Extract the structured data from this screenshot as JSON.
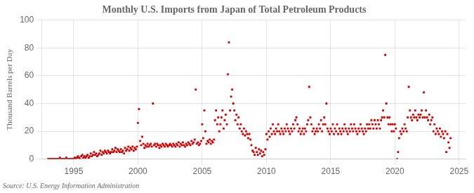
{
  "chart_data": {
    "type": "scatter",
    "title": "Monthly U.S. Imports from Japan of Total Petroleum Products",
    "ylabel": "Thousand Barrels per Day",
    "source": "Source: U.S. Energy Information Administration",
    "color": "#cc0000",
    "marker": "square",
    "grid": true,
    "xlim": [
      1992.5,
      2025.5
    ],
    "xticks": [
      1995,
      2000,
      2005,
      2010,
      2015,
      2020,
      2025
    ],
    "ylim": [
      0,
      100
    ],
    "yticks": [
      0,
      20,
      40,
      60,
      80,
      100
    ],
    "x": [
      1993.0,
      1993.08,
      1993.17,
      1993.25,
      1993.33,
      1993.42,
      1993.5,
      1993.58,
      1993.67,
      1993.75,
      1993.83,
      1993.92,
      1994.0,
      1994.08,
      1994.17,
      1994.25,
      1994.33,
      1994.42,
      1994.5,
      1994.58,
      1994.67,
      1994.75,
      1994.83,
      1994.92,
      1995.0,
      1995.08,
      1995.17,
      1995.25,
      1995.33,
      1995.42,
      1995.5,
      1995.58,
      1995.67,
      1995.75,
      1995.83,
      1995.92,
      1996.0,
      1996.08,
      1996.17,
      1996.25,
      1996.33,
      1996.42,
      1996.5,
      1996.58,
      1996.67,
      1996.75,
      1996.83,
      1996.92,
      1997.0,
      1997.08,
      1997.17,
      1997.25,
      1997.33,
      1997.42,
      1997.5,
      1997.58,
      1997.67,
      1997.75,
      1997.83,
      1997.92,
      1998.0,
      1998.08,
      1998.17,
      1998.25,
      1998.33,
      1998.42,
      1998.5,
      1998.58,
      1998.67,
      1998.75,
      1998.83,
      1998.92,
      1999.0,
      1999.08,
      1999.17,
      1999.25,
      1999.33,
      1999.42,
      1999.5,
      1999.58,
      1999.67,
      1999.75,
      1999.83,
      1999.92,
      2000.0,
      2000.08,
      2000.17,
      2000.25,
      2000.33,
      2000.42,
      2000.5,
      2000.58,
      2000.67,
      2000.75,
      2000.83,
      2000.92,
      2001.0,
      2001.08,
      2001.17,
      2001.25,
      2001.33,
      2001.42,
      2001.5,
      2001.58,
      2001.67,
      2001.75,
      2001.83,
      2001.92,
      2002.0,
      2002.08,
      2002.17,
      2002.25,
      2002.33,
      2002.42,
      2002.5,
      2002.58,
      2002.67,
      2002.75,
      2002.83,
      2002.92,
      2003.0,
      2003.08,
      2003.17,
      2003.25,
      2003.33,
      2003.42,
      2003.5,
      2003.58,
      2003.67,
      2003.75,
      2003.83,
      2003.92,
      2004.0,
      2004.08,
      2004.17,
      2004.25,
      2004.33,
      2004.42,
      2004.5,
      2004.58,
      2004.67,
      2004.75,
      2004.83,
      2004.92,
      2005.0,
      2005.08,
      2005.17,
      2005.25,
      2005.33,
      2005.42,
      2005.5,
      2005.58,
      2005.67,
      2005.75,
      2005.83,
      2005.92,
      2006.0,
      2006.08,
      2006.17,
      2006.25,
      2006.33,
      2006.42,
      2006.5,
      2006.58,
      2006.67,
      2006.75,
      2006.83,
      2006.92,
      2007.0,
      2007.08,
      2007.17,
      2007.25,
      2007.33,
      2007.42,
      2007.5,
      2007.58,
      2007.67,
      2007.75,
      2007.83,
      2007.92,
      2008.0,
      2008.08,
      2008.17,
      2008.25,
      2008.33,
      2008.42,
      2008.5,
      2008.58,
      2008.67,
      2008.75,
      2008.83,
      2008.92,
      2009.0,
      2009.08,
      2009.17,
      2009.25,
      2009.33,
      2009.42,
      2009.5,
      2009.58,
      2009.67,
      2009.75,
      2009.83,
      2009.92,
      2010.0,
      2010.08,
      2010.17,
      2010.25,
      2010.33,
      2010.42,
      2010.5,
      2010.58,
      2010.67,
      2010.75,
      2010.83,
      2010.92,
      2011.0,
      2011.08,
      2011.17,
      2011.25,
      2011.33,
      2011.42,
      2011.5,
      2011.58,
      2011.67,
      2011.75,
      2011.83,
      2011.92,
      2012.0,
      2012.08,
      2012.17,
      2012.25,
      2012.33,
      2012.42,
      2012.5,
      2012.58,
      2012.67,
      2012.75,
      2012.83,
      2012.92,
      2013.0,
      2013.08,
      2013.17,
      2013.25,
      2013.33,
      2013.42,
      2013.5,
      2013.58,
      2013.67,
      2013.75,
      2013.83,
      2013.92,
      2014.0,
      2014.08,
      2014.17,
      2014.25,
      2014.33,
      2014.42,
      2014.5,
      2014.58,
      2014.67,
      2014.75,
      2014.83,
      2014.92,
      2015.0,
      2015.08,
      2015.17,
      2015.25,
      2015.33,
      2015.42,
      2015.5,
      2015.58,
      2015.67,
      2015.75,
      2015.83,
      2015.92,
      2016.0,
      2016.08,
      2016.17,
      2016.25,
      2016.33,
      2016.42,
      2016.5,
      2016.58,
      2016.67,
      2016.75,
      2016.83,
      2016.92,
      2017.0,
      2017.08,
      2017.17,
      2017.25,
      2017.33,
      2017.42,
      2017.5,
      2017.58,
      2017.67,
      2017.75,
      2017.83,
      2017.92,
      2018.0,
      2018.08,
      2018.17,
      2018.25,
      2018.33,
      2018.42,
      2018.5,
      2018.58,
      2018.67,
      2018.75,
      2018.83,
      2018.92,
      2019.0,
      2019.08,
      2019.17,
      2019.25,
      2019.33,
      2019.42,
      2019.5,
      2019.58,
      2019.67,
      2019.75,
      2019.83,
      2019.92,
      2020.0,
      2020.08,
      2020.17,
      2020.25,
      2020.33,
      2020.42,
      2020.5,
      2020.58,
      2020.67,
      2020.75,
      2020.83,
      2020.92,
      2021.0,
      2021.08,
      2021.17,
      2021.25,
      2021.33,
      2021.42,
      2021.5,
      2021.58,
      2021.67,
      2021.75,
      2021.83,
      2021.92,
      2022.0,
      2022.08,
      2022.17,
      2022.25,
      2022.33,
      2022.42,
      2022.5,
      2022.58,
      2022.67,
      2022.75,
      2022.83,
      2022.92,
      2023.0,
      2023.08,
      2023.17,
      2023.25,
      2023.33,
      2023.42,
      2023.5,
      2023.58,
      2023.67,
      2023.75,
      2023.83,
      2023.92,
      2024.0,
      2024.08,
      2024.17,
      2024.25,
      2024.33
    ],
    "values": [
      0,
      0,
      0,
      0,
      0,
      0,
      0,
      0,
      0,
      0,
      0,
      1,
      0,
      0,
      0,
      0,
      0,
      1,
      0,
      0,
      0,
      0,
      0,
      0,
      0,
      1,
      0,
      1,
      2,
      1,
      0,
      2,
      3,
      1,
      2,
      1,
      2,
      3,
      1,
      2,
      4,
      2,
      3,
      5,
      3,
      4,
      2,
      3,
      4,
      6,
      3,
      5,
      4,
      6,
      5,
      4,
      6,
      5,
      4,
      5,
      7,
      5,
      6,
      8,
      5,
      7,
      6,
      5,
      7,
      5,
      6,
      4,
      8,
      6,
      7,
      9,
      6,
      8,
      7,
      9,
      6,
      8,
      7,
      9,
      26,
      36,
      13,
      10,
      16,
      11,
      8,
      10,
      9,
      11,
      9,
      10,
      11,
      9,
      40,
      10,
      11,
      9,
      11,
      10,
      8,
      10,
      9,
      11,
      10,
      9,
      11,
      10,
      9,
      10,
      11,
      10,
      9,
      11,
      10,
      9,
      11,
      10,
      12,
      9,
      11,
      10,
      12,
      10,
      9,
      11,
      10,
      12,
      11,
      10,
      13,
      11,
      12,
      14,
      50,
      11,
      12,
      10,
      11,
      13,
      25,
      15,
      35,
      20,
      11,
      13,
      12,
      14,
      11,
      13,
      12,
      14,
      28,
      35,
      25,
      30,
      20,
      25,
      30,
      35,
      22,
      28,
      32,
      25,
      61,
      84,
      35,
      45,
      50,
      40,
      35,
      28,
      32,
      25,
      30,
      22,
      25,
      20,
      18,
      22,
      17,
      20,
      18,
      15,
      18,
      14,
      10,
      6,
      5,
      3,
      8,
      5,
      3,
      7,
      4,
      6,
      2,
      5,
      3,
      7,
      18,
      14,
      20,
      16,
      22,
      18,
      25,
      20,
      18,
      22,
      20,
      25,
      20,
      18,
      22,
      20,
      18,
      22,
      20,
      25,
      22,
      20,
      18,
      22,
      20,
      25,
      22,
      28,
      30,
      25,
      20,
      22,
      18,
      20,
      22,
      18,
      22,
      20,
      25,
      28,
      52,
      30,
      25,
      20,
      22,
      18,
      20,
      22,
      20,
      25,
      22,
      28,
      20,
      25,
      30,
      25,
      40,
      22,
      20,
      18,
      22,
      20,
      25,
      18,
      22,
      20,
      25,
      18,
      22,
      20,
      18,
      22,
      20,
      25,
      22,
      20,
      18,
      22,
      20,
      25,
      22,
      20,
      25,
      22,
      20,
      18,
      22,
      20,
      25,
      22,
      20,
      18,
      22,
      20,
      25,
      22,
      25,
      22,
      28,
      25,
      22,
      28,
      25,
      22,
      28,
      25,
      22,
      28,
      30,
      35,
      30,
      75,
      40,
      30,
      25,
      30,
      25,
      20,
      25,
      20,
      25,
      22,
      0,
      5,
      15,
      20,
      18,
      22,
      20,
      25,
      22,
      20,
      30,
      52,
      35,
      30,
      28,
      32,
      30,
      35,
      30,
      28,
      32,
      30,
      32,
      35,
      30,
      48,
      30,
      35,
      30,
      28,
      32,
      25,
      28,
      30,
      20,
      25,
      18,
      22,
      20,
      18,
      22,
      16,
      20,
      18,
      15,
      20,
      5,
      18,
      12,
      8,
      15
    ]
  }
}
